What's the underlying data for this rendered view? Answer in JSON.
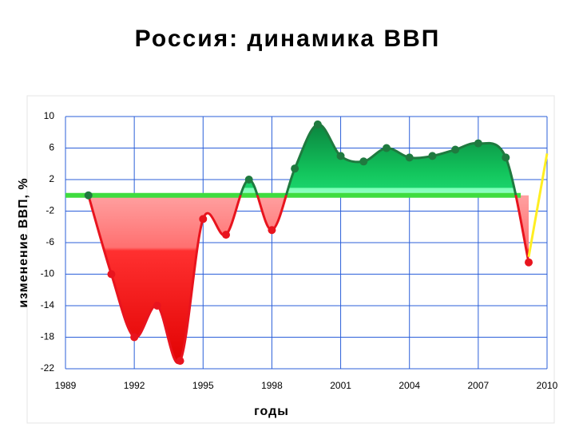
{
  "chart_data": {
    "type": "area-line",
    "title": "Россия: динамика ВВП",
    "xlabel": "годы",
    "ylabel": "изменение ВВП, %",
    "xlim": [
      1989,
      2010
    ],
    "xticks": [
      1989,
      1992,
      1995,
      1998,
      2001,
      2004,
      2007,
      2010
    ],
    "ylim": [
      -22,
      10
    ],
    "yticks": [
      10,
      6,
      2,
      -2,
      -6,
      -10,
      -14,
      -18,
      -22
    ],
    "grid": true,
    "color_positive": "#1f7a3f",
    "color_negative": "#e8141e",
    "baseline_color": "#3fdc3f",
    "series": [
      {
        "x": [
          1990,
          1991,
          1992,
          1993,
          1994,
          1995,
          1996,
          1997,
          1998,
          1999,
          2000,
          2001,
          2002,
          2003,
          2004,
          2005,
          2006,
          2007,
          2008.2,
          2009.2
        ],
        "values": [
          0,
          -10,
          -18,
          -14,
          -21,
          -3,
          -5,
          2,
          -4.4,
          3.4,
          9,
          5,
          4.3,
          6,
          4.8,
          5,
          5.8,
          6.6,
          4.8,
          -8.5
        ]
      },
      {
        "x": [
          2009.2,
          2010
        ],
        "values": [
          -7.8,
          5.3
        ],
        "color": "#ffee22",
        "markers": false
      }
    ]
  }
}
